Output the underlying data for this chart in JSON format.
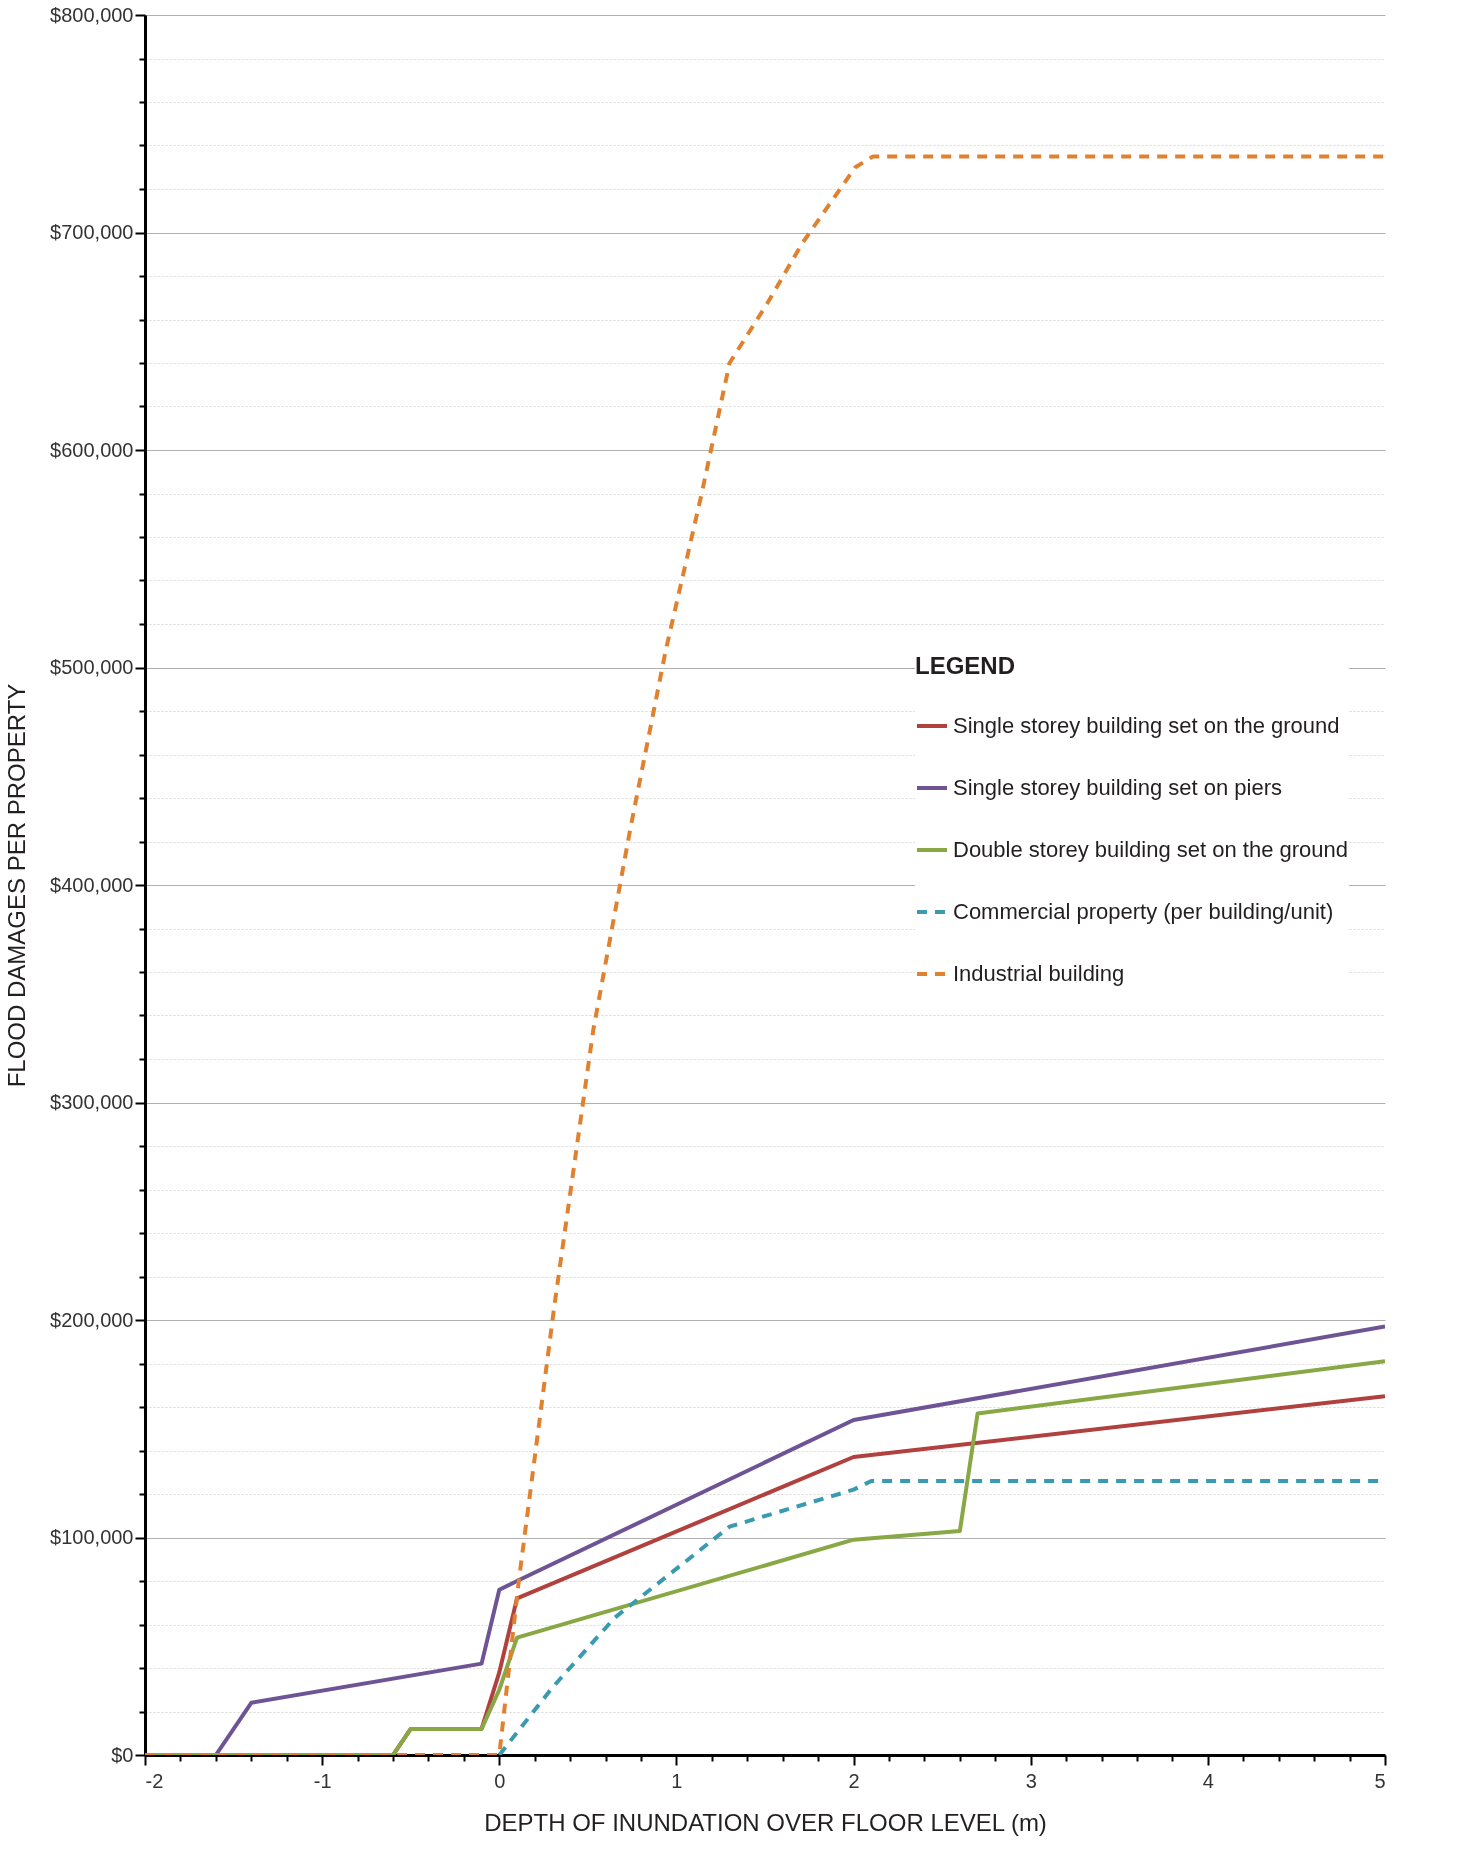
{
  "chart_data": {
    "type": "line",
    "xlabel": "DEPTH OF INUNDATION OVER FLOOR LEVEL (m)",
    "ylabel": "FLOOD DAMAGES PER PROPERTY",
    "legend_title": "LEGEND",
    "legend": "right",
    "grid": "y",
    "xlim": [
      -2,
      5
    ],
    "xticks": [
      -2,
      {
        "value": -1.8,
        "label": null
      },
      {
        "value": -1.6,
        "label": null
      },
      {
        "value": -1.4,
        "label": null
      },
      {
        "value": -1.2,
        "label": null
      },
      -1,
      {
        "value": -0.8,
        "label": null
      },
      {
        "value": -0.6,
        "label": null
      },
      {
        "value": -0.4,
        "label": null
      },
      {
        "value": -0.2,
        "label": null
      },
      0,
      {
        "value": 0.2,
        "label": null
      },
      {
        "value": 0.4,
        "label": null
      },
      {
        "value": 0.6,
        "label": null
      },
      {
        "value": 0.8,
        "label": null
      },
      1,
      {
        "value": 1.2,
        "label": null
      },
      {
        "value": 1.4,
        "label": null
      },
      {
        "value": 1.6,
        "label": null
      },
      {
        "value": 1.8,
        "label": null
      },
      2,
      {
        "value": 2.2,
        "label": null
      },
      {
        "value": 2.4,
        "label": null
      },
      {
        "value": 2.6,
        "label": null
      },
      {
        "value": 2.8,
        "label": null
      },
      3,
      {
        "value": 3.2,
        "label": null
      },
      {
        "value": 3.4,
        "label": null
      },
      {
        "value": 3.6,
        "label": null
      },
      {
        "value": 3.8,
        "label": null
      },
      4,
      {
        "value": 4.2,
        "label": null
      },
      {
        "value": 4.4,
        "label": null
      },
      {
        "value": 4.6,
        "label": null
      },
      {
        "value": 4.8,
        "label": null
      },
      5
    ],
    "ylim": [
      0,
      800000
    ],
    "yticks": [
      {
        "value": 0,
        "label": "$0"
      },
      {
        "value": 20000,
        "label": null
      },
      {
        "value": 40000,
        "label": null
      },
      {
        "value": 60000,
        "label": null
      },
      {
        "value": 80000,
        "label": null
      },
      {
        "value": 100000,
        "label": "$100,000"
      },
      {
        "value": 120000,
        "label": null
      },
      {
        "value": 140000,
        "label": null
      },
      {
        "value": 160000,
        "label": null
      },
      {
        "value": 180000,
        "label": null
      },
      {
        "value": 200000,
        "label": "$200,000"
      },
      {
        "value": 220000,
        "label": null
      },
      {
        "value": 240000,
        "label": null
      },
      {
        "value": 260000,
        "label": null
      },
      {
        "value": 280000,
        "label": null
      },
      {
        "value": 300000,
        "label": "$300,000"
      },
      {
        "value": 320000,
        "label": null
      },
      {
        "value": 340000,
        "label": null
      },
      {
        "value": 360000,
        "label": null
      },
      {
        "value": 380000,
        "label": null
      },
      {
        "value": 400000,
        "label": "$400,000"
      },
      {
        "value": 420000,
        "label": null
      },
      {
        "value": 440000,
        "label": null
      },
      {
        "value": 460000,
        "label": null
      },
      {
        "value": 480000,
        "label": null
      },
      {
        "value": 500000,
        "label": "$500,000"
      },
      {
        "value": 520000,
        "label": null
      },
      {
        "value": 540000,
        "label": null
      },
      {
        "value": 560000,
        "label": null
      },
      {
        "value": 580000,
        "label": null
      },
      {
        "value": 600000,
        "label": "$600,000"
      },
      {
        "value": 620000,
        "label": null
      },
      {
        "value": 640000,
        "label": null
      },
      {
        "value": 660000,
        "label": null
      },
      {
        "value": 680000,
        "label": null
      },
      {
        "value": 700000,
        "label": "$700,000"
      },
      {
        "value": 720000,
        "label": null
      },
      {
        "value": 740000,
        "label": null
      },
      {
        "value": 760000,
        "label": null
      },
      {
        "value": 780000,
        "label": null
      },
      {
        "value": 800000,
        "label": "$800,000"
      }
    ],
    "series": [
      {
        "name": "Single storey building set on the ground",
        "color": "#b0413e",
        "line_style": "solid",
        "x": [
          -2,
          -0.6,
          -0.5,
          -0.1,
          0,
          0.1,
          2,
          5
        ],
        "values": [
          0,
          0,
          12000,
          12000,
          38000,
          72000,
          137000,
          165000
        ]
      },
      {
        "name": "Single storey building set on piers",
        "color": "#6e5494",
        "line_style": "solid",
        "x": [
          -2,
          -1.6,
          -1.4,
          -0.1,
          0,
          0.1,
          2,
          5
        ],
        "values": [
          0,
          0,
          24000,
          42000,
          76000,
          80000,
          154000,
          197000
        ]
      },
      {
        "name": "Double storey building set on the ground",
        "color": "#88a845",
        "line_style": "solid",
        "x": [
          -2,
          -0.6,
          -0.5,
          -0.1,
          0,
          0.1,
          2,
          2.6,
          2.7,
          5
        ],
        "values": [
          0,
          0,
          12000,
          12000,
          30000,
          54000,
          99000,
          103000,
          157000,
          181000
        ]
      },
      {
        "name": "Commercial property (per building/unit)",
        "color": "#3a9ab0",
        "line_style": "dashed",
        "x": [
          0,
          0.3,
          0.65,
          1.3,
          2,
          2.1,
          5
        ],
        "values": [
          0,
          31000,
          63000,
          105000,
          122000,
          126000,
          126000
        ]
      },
      {
        "name": "Industrial building",
        "color": "#e08130",
        "line_style": "dashed",
        "x": [
          -2,
          0,
          0.11,
          0.31,
          0.53,
          0.74,
          0.94,
          1.14,
          1.3,
          1.51,
          1.71,
          2.01,
          2.11,
          5
        ],
        "values": [
          0,
          0,
          80000,
          206000,
          333000,
          426000,
          508000,
          579000,
          640000,
          667000,
          695000,
          730000,
          735000,
          735000
        ]
      }
    ]
  }
}
